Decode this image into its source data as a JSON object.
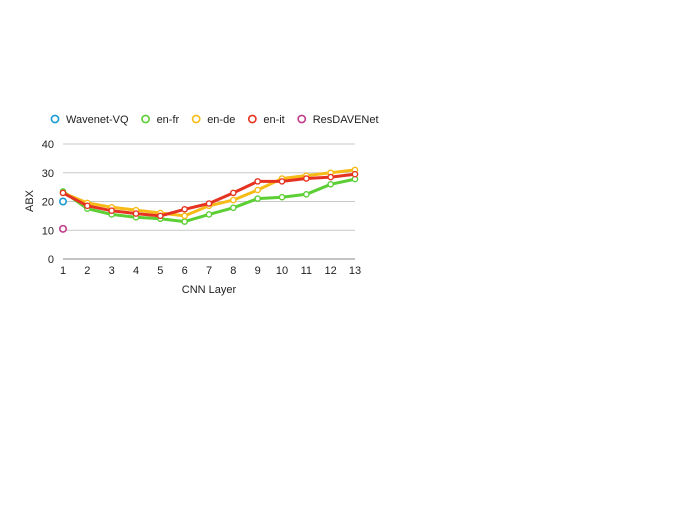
{
  "chart_data": {
    "type": "line",
    "title": "",
    "xlabel": "CNN Layer",
    "ylabel": "ABX",
    "x": [
      1,
      2,
      3,
      4,
      5,
      6,
      7,
      8,
      9,
      10,
      11,
      12,
      13
    ],
    "ylim": [
      0,
      40
    ],
    "yticks": [
      0,
      10,
      20,
      30,
      40
    ],
    "grid": "horizontal",
    "legend_position": "top",
    "series": [
      {
        "name": "en-fr",
        "color": "#5ccf35",
        "values": [
          23.5,
          17.5,
          15.5,
          14.5,
          14.0,
          13.0,
          15.5,
          17.8,
          21.0,
          21.5,
          22.5,
          26.0,
          27.8
        ]
      },
      {
        "name": "en-de",
        "color": "#f7bb18",
        "values": [
          23.0,
          19.5,
          18.0,
          17.0,
          16.0,
          15.0,
          18.5,
          20.5,
          24.0,
          28.0,
          29.0,
          30.0,
          31.0
        ]
      },
      {
        "name": "en-it",
        "color": "#e63321",
        "values": [
          23.0,
          18.5,
          16.8,
          15.8,
          15.0,
          17.3,
          19.3,
          23.0,
          27.0,
          27.0,
          28.0,
          28.5,
          29.5
        ]
      }
    ],
    "points": [
      {
        "name": "Wavenet-VQ",
        "color": "#1d9ad6",
        "x": 1,
        "value": 20.0
      },
      {
        "name": "ResDAVENet",
        "color": "#c13c8a",
        "x": 1,
        "value": 10.5
      }
    ],
    "legend": [
      {
        "label": "Wavenet-VQ",
        "color": "#1d9ad6"
      },
      {
        "label": "en-fr",
        "color": "#5ccf35"
      },
      {
        "label": "en-de",
        "color": "#f7bb18"
      },
      {
        "label": "en-it",
        "color": "#e63321"
      },
      {
        "label": "ResDAVENet",
        "color": "#c13c8a"
      }
    ]
  }
}
